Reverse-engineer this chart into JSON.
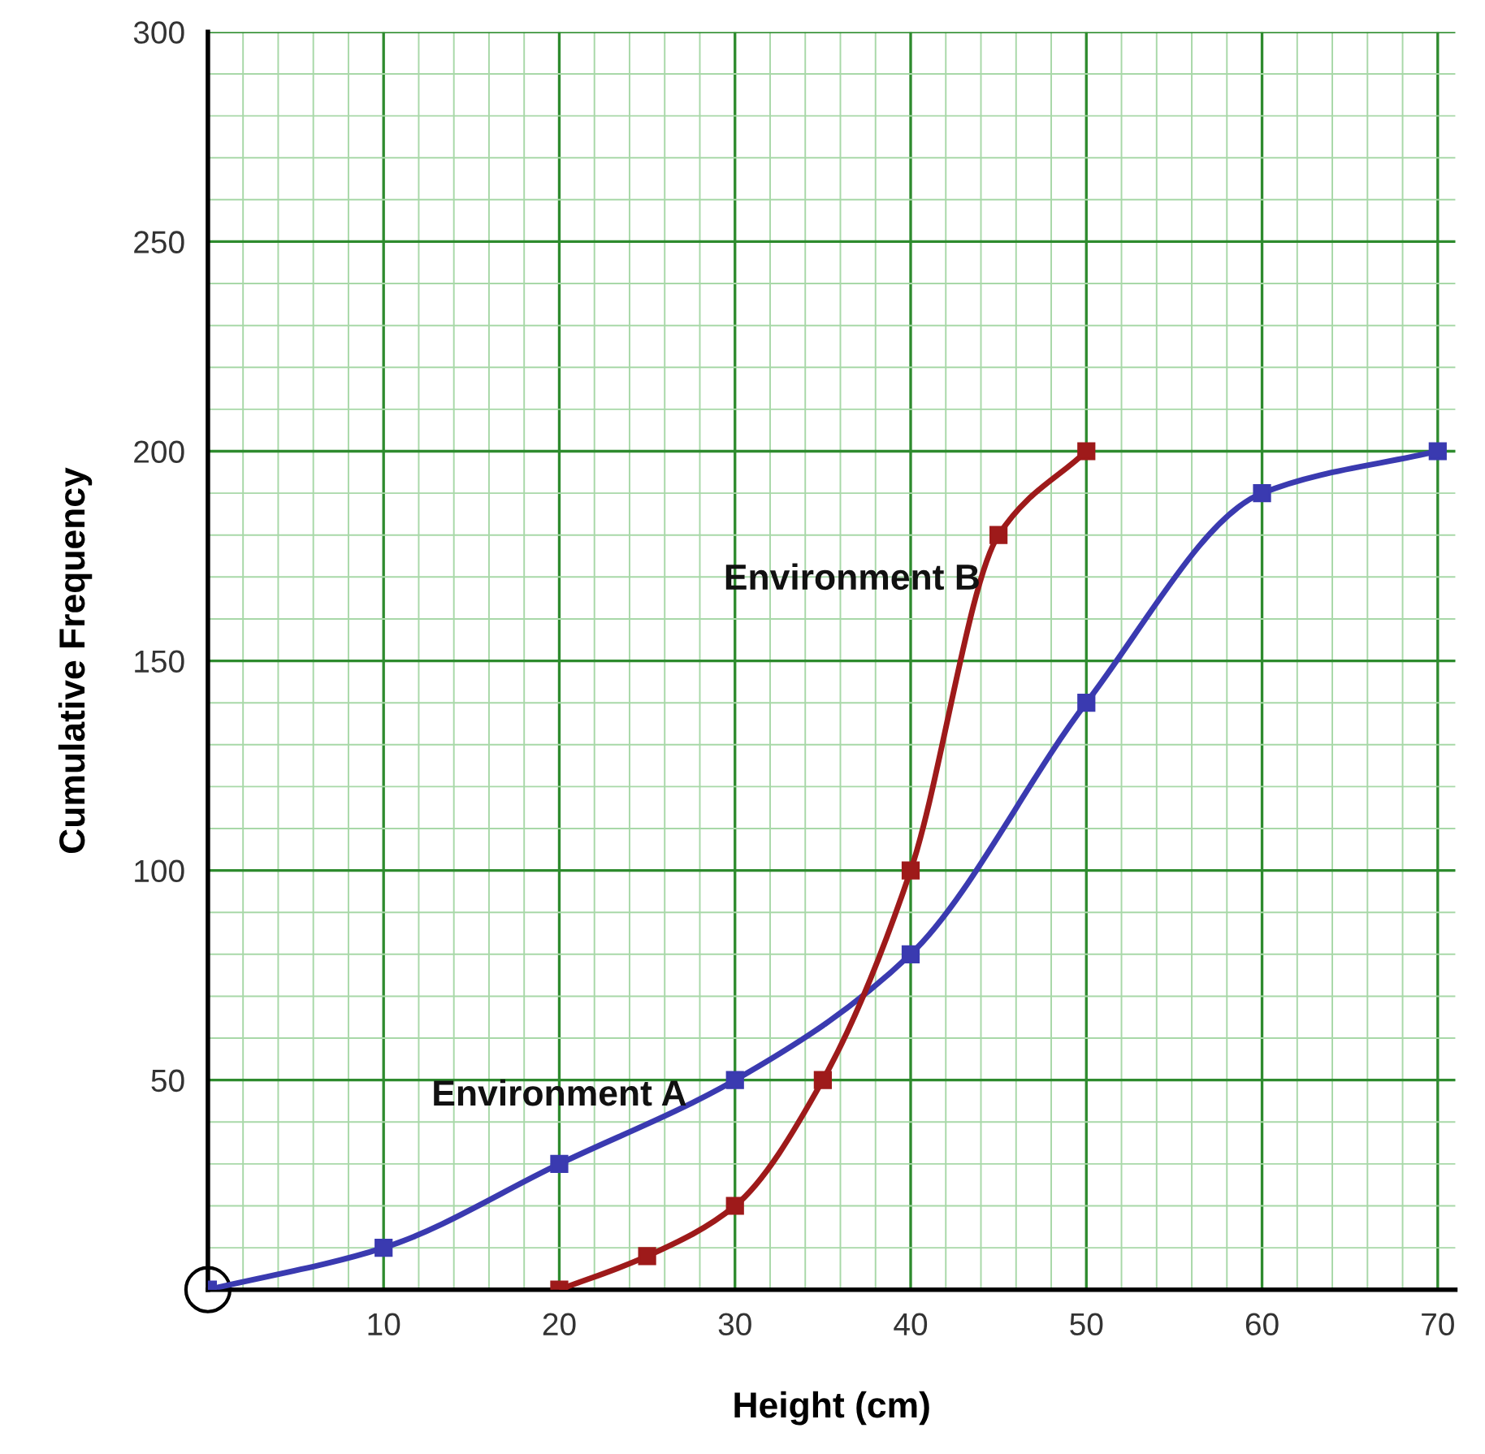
{
  "chart_data": {
    "type": "line",
    "xlabel": "Height (cm)",
    "ylabel": "Cumulative Frequency",
    "xlim": [
      0,
      71
    ],
    "ylim": [
      0,
      300
    ],
    "xticks": [
      10,
      20,
      30,
      40,
      50,
      60,
      70
    ],
    "yticks": [
      50,
      100,
      150,
      200,
      250,
      300
    ],
    "grid": true,
    "marker": "square",
    "line_style": "solid",
    "series": [
      {
        "name": "Environment A",
        "color": "#3a3ab0",
        "x": [
          0,
          10,
          20,
          30,
          40,
          50,
          60,
          70
        ],
        "values": [
          0,
          10,
          30,
          50,
          80,
          140,
          190,
          200
        ]
      },
      {
        "name": "Environment B",
        "color": "#9e1a1a",
        "x": [
          20,
          25,
          30,
          35,
          40,
          45,
          50
        ],
        "values": [
          0,
          8,
          20,
          50,
          100,
          180,
          200
        ]
      }
    ]
  }
}
